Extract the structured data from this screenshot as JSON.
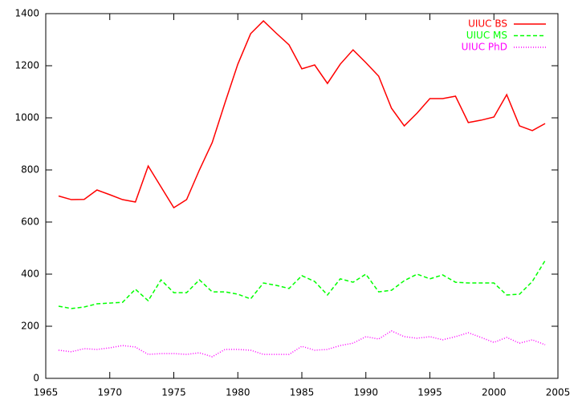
{
  "chart_data": {
    "type": "line",
    "x": [
      1966,
      1967,
      1968,
      1969,
      1970,
      1971,
      1972,
      1973,
      1974,
      1975,
      1976,
      1977,
      1978,
      1979,
      1980,
      1981,
      1982,
      1983,
      1984,
      1985,
      1986,
      1987,
      1988,
      1989,
      1990,
      1991,
      1992,
      1993,
      1994,
      1995,
      1996,
      1997,
      1998,
      1999,
      2000,
      2001,
      2002,
      2003,
      2004
    ],
    "series": [
      {
        "name": "UIUC BS",
        "color": "#ff0000",
        "style": "solid",
        "values": [
          700,
          686,
          687,
          723,
          705,
          686,
          677,
          815,
          735,
          655,
          686,
          800,
          905,
          1058,
          1206,
          1323,
          1372,
          1325,
          1280,
          1188,
          1203,
          1132,
          1206,
          1261,
          1212,
          1160,
          1037,
          969,
          1018,
          1074,
          1074,
          1083,
          982,
          991,
          1003,
          1089,
          969,
          951,
          978
        ]
      },
      {
        "name": "UIUC MS",
        "color": "#00ff00",
        "style": "dashed",
        "values": [
          277,
          268,
          274,
          286,
          289,
          292,
          342,
          298,
          378,
          329,
          329,
          378,
          332,
          332,
          323,
          305,
          366,
          357,
          345,
          394,
          372,
          320,
          382,
          369,
          400,
          332,
          338,
          375,
          400,
          382,
          397,
          369,
          366,
          366,
          366,
          320,
          323,
          372,
          452
        ]
      },
      {
        "name": "UIUC PhD",
        "color": "#ff00ff",
        "style": "dotted",
        "values": [
          108,
          102,
          114,
          111,
          117,
          126,
          120,
          92,
          95,
          95,
          92,
          98,
          83,
          111,
          111,
          108,
          92,
          92,
          92,
          123,
          108,
          111,
          126,
          135,
          160,
          151,
          182,
          160,
          154,
          160,
          148,
          160,
          175,
          157,
          138,
          157,
          135,
          148,
          129
        ]
      }
    ],
    "xlim": [
      1965,
      2005
    ],
    "xticks": [
      1965,
      1970,
      1975,
      1980,
      1985,
      1990,
      1995,
      2000,
      2005
    ],
    "ylim": [
      0,
      1400
    ],
    "yticks": [
      0,
      200,
      400,
      600,
      800,
      1000,
      1200,
      1400
    ],
    "grid": false,
    "legend": "upper right"
  }
}
